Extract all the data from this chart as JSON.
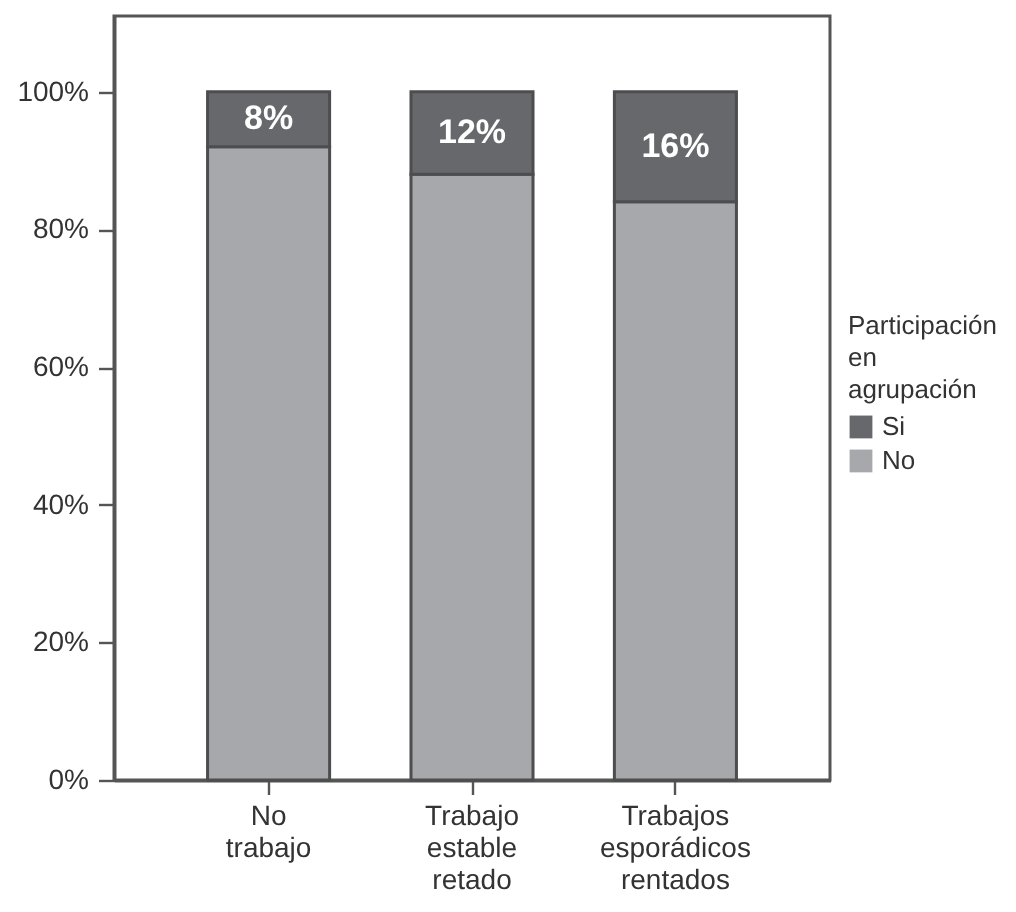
{
  "chart_data": {
    "type": "bar",
    "stacked": true,
    "legend_title": "Participación en agrupación",
    "legend": "right",
    "categories": [
      "No trabajo",
      "Trabajo estable retado",
      "Trabajos esporádicos rentados"
    ],
    "series": [
      {
        "name": "No",
        "color": "#a7a8ab",
        "values": [
          92,
          88,
          84
        ]
      },
      {
        "name": "Si",
        "color": "#67686c",
        "values": [
          8,
          12,
          16
        ],
        "value_labels": [
          "8%",
          "12%",
          "16%"
        ]
      }
    ],
    "ylim": [
      0,
      111
    ],
    "yticks": [
      {
        "value": 0,
        "label": "0%"
      },
      {
        "value": 20,
        "label": "20%"
      },
      {
        "value": 40,
        "label": "40%"
      },
      {
        "value": 60,
        "label": "60%"
      },
      {
        "value": 80,
        "label": "80%"
      },
      {
        "value": 100,
        "label": "100%"
      }
    ]
  }
}
